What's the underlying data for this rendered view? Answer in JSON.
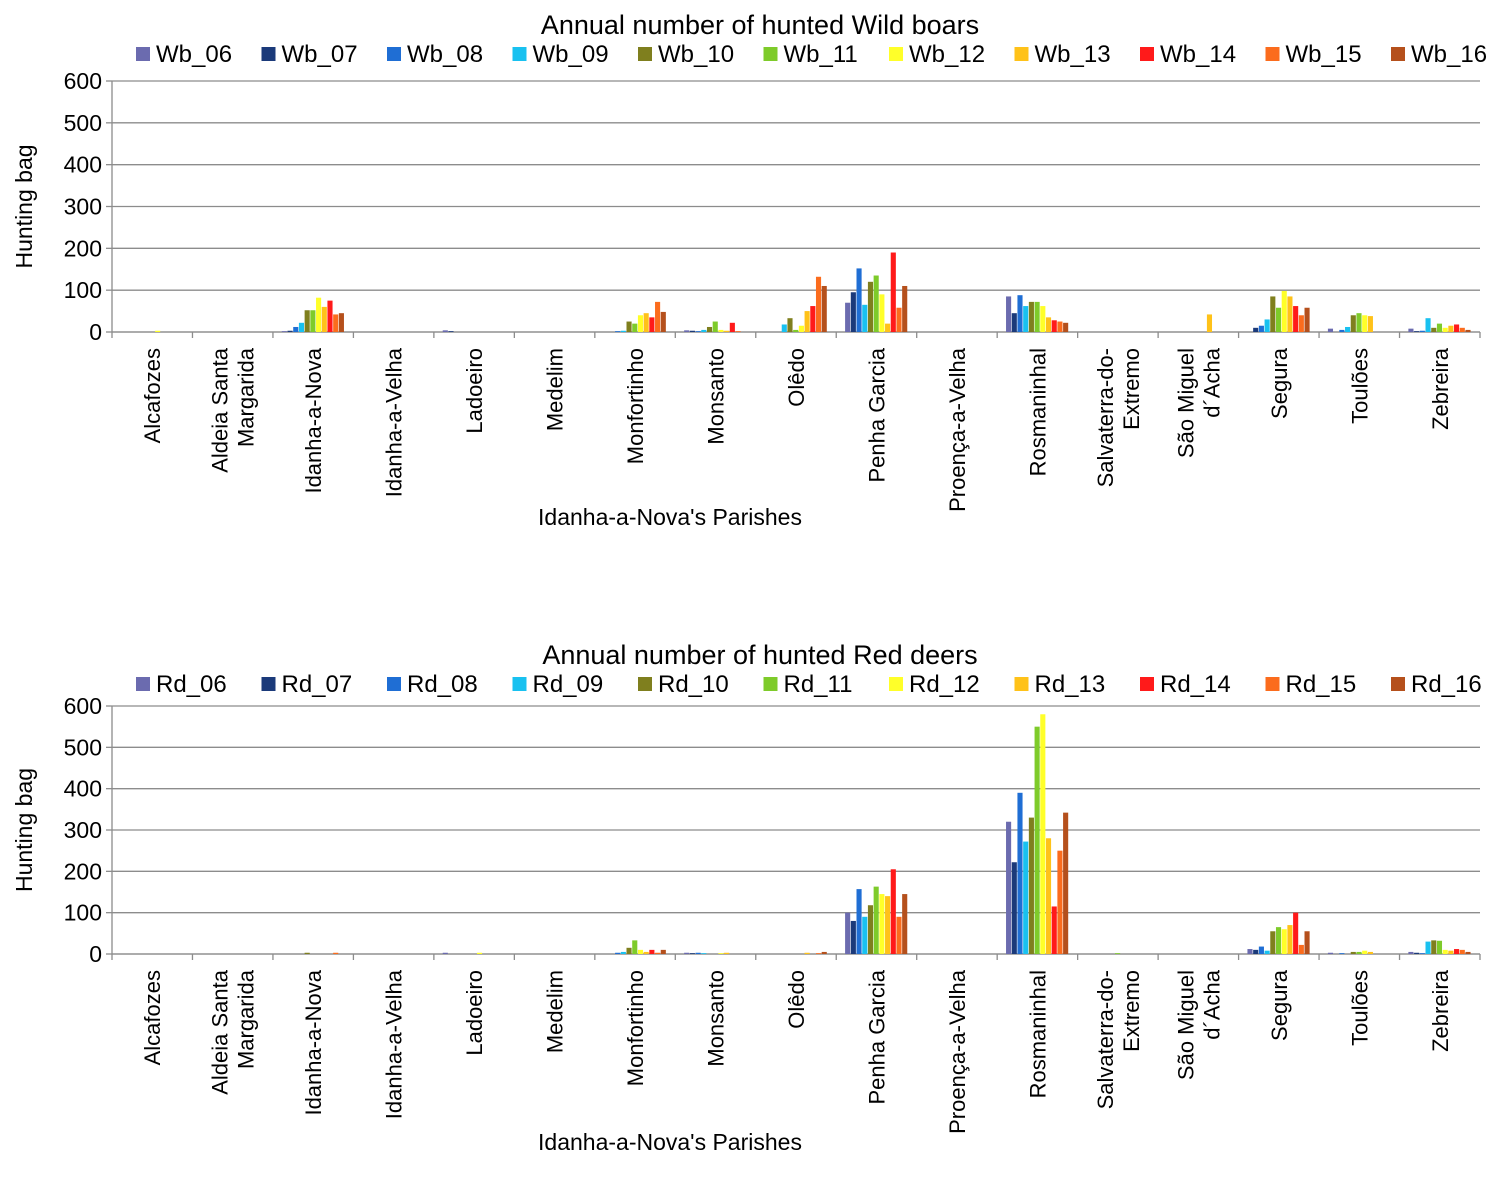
{
  "chart_data": [
    {
      "type": "bar",
      "title": "Annual number of hunted Wild boars",
      "xlabel": "Idanha-a-Nova's Parishes",
      "ylabel": "Hunting bag",
      "ylim": [
        0,
        600
      ],
      "yticks": [
        "0",
        "100",
        "200",
        "300",
        "400",
        "500",
        "600"
      ],
      "grid": true,
      "legend": "top",
      "categories": [
        "Alcafozes",
        "Aldeia Santa Margarida",
        "Idanha-a-Nova",
        "Idanha-a-Velha",
        "Ladoeiro",
        "Medelim",
        "Monfortinho",
        "Monsanto",
        "Olêdo",
        "Penha Garcia",
        "Proença-a-Velha",
        "Rosmaninhal",
        "Salvaterra-do-Extremo",
        "São Miguel d´Acha",
        "Segura",
        "Toulões",
        "Zebreira"
      ],
      "category_lines": [
        [
          "Alcafozes"
        ],
        [
          "Aldeia Santa",
          "Margarida"
        ],
        [
          "Idanha-a-Nova"
        ],
        [
          "Idanha-a-Velha"
        ],
        [
          "Ladoeiro"
        ],
        [
          "Medelim"
        ],
        [
          "Monfortinho"
        ],
        [
          "Monsanto"
        ],
        [
          "Olêdo"
        ],
        [
          "Penha Garcia"
        ],
        [
          "Proença-a-Velha"
        ],
        [
          "Rosmaninhal"
        ],
        [
          "Salvaterra-do-",
          "Extremo"
        ],
        [
          "São Miguel",
          "d´Acha"
        ],
        [
          "Segura"
        ],
        [
          "Toulões"
        ],
        [
          "Zebreira"
        ]
      ],
      "series": [
        {
          "name": "Wb_06",
          "color": "#6b6baf",
          "values": [
            0,
            0,
            2,
            0,
            4,
            0,
            0,
            4,
            0,
            70,
            0,
            85,
            0,
            0,
            0,
            8,
            8
          ]
        },
        {
          "name": "Wb_07",
          "color": "#1b3a7a",
          "values": [
            0,
            0,
            3,
            0,
            2,
            0,
            0,
            3,
            0,
            95,
            0,
            45,
            0,
            0,
            10,
            0,
            2
          ]
        },
        {
          "name": "Wb_08",
          "color": "#1f6ed4",
          "values": [
            0,
            0,
            12,
            0,
            0,
            0,
            2,
            2,
            0,
            152,
            0,
            88,
            0,
            0,
            15,
            5,
            3
          ]
        },
        {
          "name": "Wb_09",
          "color": "#19c1f0",
          "values": [
            0,
            0,
            22,
            0,
            0,
            0,
            3,
            5,
            18,
            65,
            0,
            62,
            0,
            0,
            30,
            12,
            33
          ]
        },
        {
          "name": "Wb_10",
          "color": "#7f7f1e",
          "values": [
            0,
            0,
            52,
            0,
            0,
            0,
            25,
            12,
            33,
            120,
            0,
            72,
            0,
            0,
            85,
            40,
            10
          ]
        },
        {
          "name": "Wb_11",
          "color": "#7ecb2a",
          "values": [
            0,
            0,
            52,
            0,
            0,
            0,
            20,
            25,
            5,
            135,
            0,
            72,
            0,
            0,
            58,
            45,
            20
          ]
        },
        {
          "name": "Wb_12",
          "color": "#ffff29",
          "values": [
            3,
            0,
            82,
            0,
            0,
            0,
            40,
            5,
            15,
            90,
            0,
            62,
            0,
            0,
            98,
            40,
            10
          ]
        },
        {
          "name": "Wb_13",
          "color": "#ffc219",
          "values": [
            0,
            0,
            60,
            0,
            0,
            0,
            45,
            3,
            50,
            20,
            0,
            35,
            0,
            42,
            85,
            38,
            15
          ]
        },
        {
          "name": "Wb_14",
          "color": "#ff1a1a",
          "values": [
            0,
            0,
            75,
            0,
            0,
            0,
            35,
            22,
            62,
            190,
            0,
            28,
            0,
            0,
            62,
            0,
            18
          ]
        },
        {
          "name": "Wb_15",
          "color": "#fb6c1d",
          "values": [
            0,
            0,
            42,
            0,
            0,
            0,
            72,
            2,
            132,
            58,
            0,
            25,
            0,
            0,
            40,
            0,
            10
          ]
        },
        {
          "name": "Wb_16",
          "color": "#b5501c",
          "values": [
            0,
            0,
            45,
            0,
            0,
            0,
            48,
            0,
            110,
            110,
            0,
            22,
            0,
            0,
            58,
            0,
            5
          ]
        }
      ]
    },
    {
      "type": "bar",
      "title": "Annual number of hunted Red deers",
      "xlabel": "Idanha-a-Nova's Parishes",
      "ylabel": "Hunting bag",
      "ylim": [
        0,
        600
      ],
      "yticks": [
        "0",
        "100",
        "200",
        "300",
        "400",
        "500",
        "600"
      ],
      "grid": true,
      "legend": "top",
      "categories": [
        "Alcafozes",
        "Aldeia Santa Margarida",
        "Idanha-a-Nova",
        "Idanha-a-Velha",
        "Ladoeiro",
        "Medelim",
        "Monfortinho",
        "Monsanto",
        "Olêdo",
        "Penha Garcia",
        "Proença-a-Velha",
        "Rosmaninhal",
        "Salvaterra-do-Extremo",
        "São Miguel d´Acha",
        "Segura",
        "Toulões",
        "Zebreira"
      ],
      "category_lines": [
        [
          "Alcafozes"
        ],
        [
          "Aldeia Santa",
          "Margarida"
        ],
        [
          "Idanha-a-Nova"
        ],
        [
          "Idanha-a-Velha"
        ],
        [
          "Ladoeiro"
        ],
        [
          "Medelim"
        ],
        [
          "Monfortinho"
        ],
        [
          "Monsanto"
        ],
        [
          "Olêdo"
        ],
        [
          "Penha Garcia"
        ],
        [
          "Proença-a-Velha"
        ],
        [
          "Rosmaninhal"
        ],
        [
          "Salvaterra-do-",
          "Extremo"
        ],
        [
          "São Miguel",
          "d´Acha"
        ],
        [
          "Segura"
        ],
        [
          "Toulões"
        ],
        [
          "Zebreira"
        ]
      ],
      "series": [
        {
          "name": "Rd_06",
          "color": "#6b6baf",
          "values": [
            0,
            0,
            0,
            0,
            3,
            0,
            0,
            3,
            0,
            100,
            0,
            320,
            0,
            0,
            12,
            3,
            5
          ]
        },
        {
          "name": "Rd_07",
          "color": "#1b3a7a",
          "values": [
            0,
            0,
            0,
            0,
            0,
            0,
            0,
            2,
            0,
            80,
            0,
            222,
            0,
            0,
            10,
            0,
            3
          ]
        },
        {
          "name": "Rd_08",
          "color": "#1f6ed4",
          "values": [
            0,
            0,
            0,
            0,
            0,
            0,
            3,
            3,
            0,
            157,
            0,
            390,
            0,
            0,
            18,
            2,
            2
          ]
        },
        {
          "name": "Rd_09",
          "color": "#19c1f0",
          "values": [
            0,
            0,
            0,
            0,
            0,
            0,
            5,
            2,
            0,
            90,
            0,
            272,
            0,
            0,
            8,
            0,
            30
          ]
        },
        {
          "name": "Rd_10",
          "color": "#7f7f1e",
          "values": [
            0,
            0,
            3,
            0,
            0,
            0,
            15,
            0,
            0,
            118,
            0,
            330,
            0,
            0,
            55,
            5,
            33
          ]
        },
        {
          "name": "Rd_11",
          "color": "#7ecb2a",
          "values": [
            0,
            0,
            0,
            0,
            0,
            0,
            33,
            0,
            0,
            163,
            0,
            550,
            2,
            0,
            65,
            5,
            32
          ]
        },
        {
          "name": "Rd_12",
          "color": "#ffff29",
          "values": [
            0,
            0,
            0,
            0,
            3,
            0,
            10,
            2,
            0,
            145,
            0,
            580,
            0,
            0,
            60,
            8,
            10
          ]
        },
        {
          "name": "Rd_13",
          "color": "#ffc219",
          "values": [
            0,
            0,
            0,
            0,
            0,
            0,
            5,
            3,
            3,
            140,
            0,
            280,
            0,
            0,
            70,
            5,
            8
          ]
        },
        {
          "name": "Rd_14",
          "color": "#ff1a1a",
          "values": [
            0,
            0,
            0,
            0,
            0,
            0,
            10,
            0,
            0,
            205,
            0,
            115,
            0,
            0,
            100,
            0,
            12
          ]
        },
        {
          "name": "Rd_15",
          "color": "#fb6c1d",
          "values": [
            0,
            0,
            3,
            0,
            0,
            0,
            3,
            0,
            2,
            90,
            0,
            250,
            0,
            0,
            22,
            0,
            10
          ]
        },
        {
          "name": "Rd_16",
          "color": "#b5501c",
          "values": [
            0,
            0,
            0,
            0,
            0,
            0,
            10,
            0,
            5,
            145,
            0,
            342,
            0,
            0,
            55,
            0,
            5
          ]
        }
      ]
    }
  ]
}
